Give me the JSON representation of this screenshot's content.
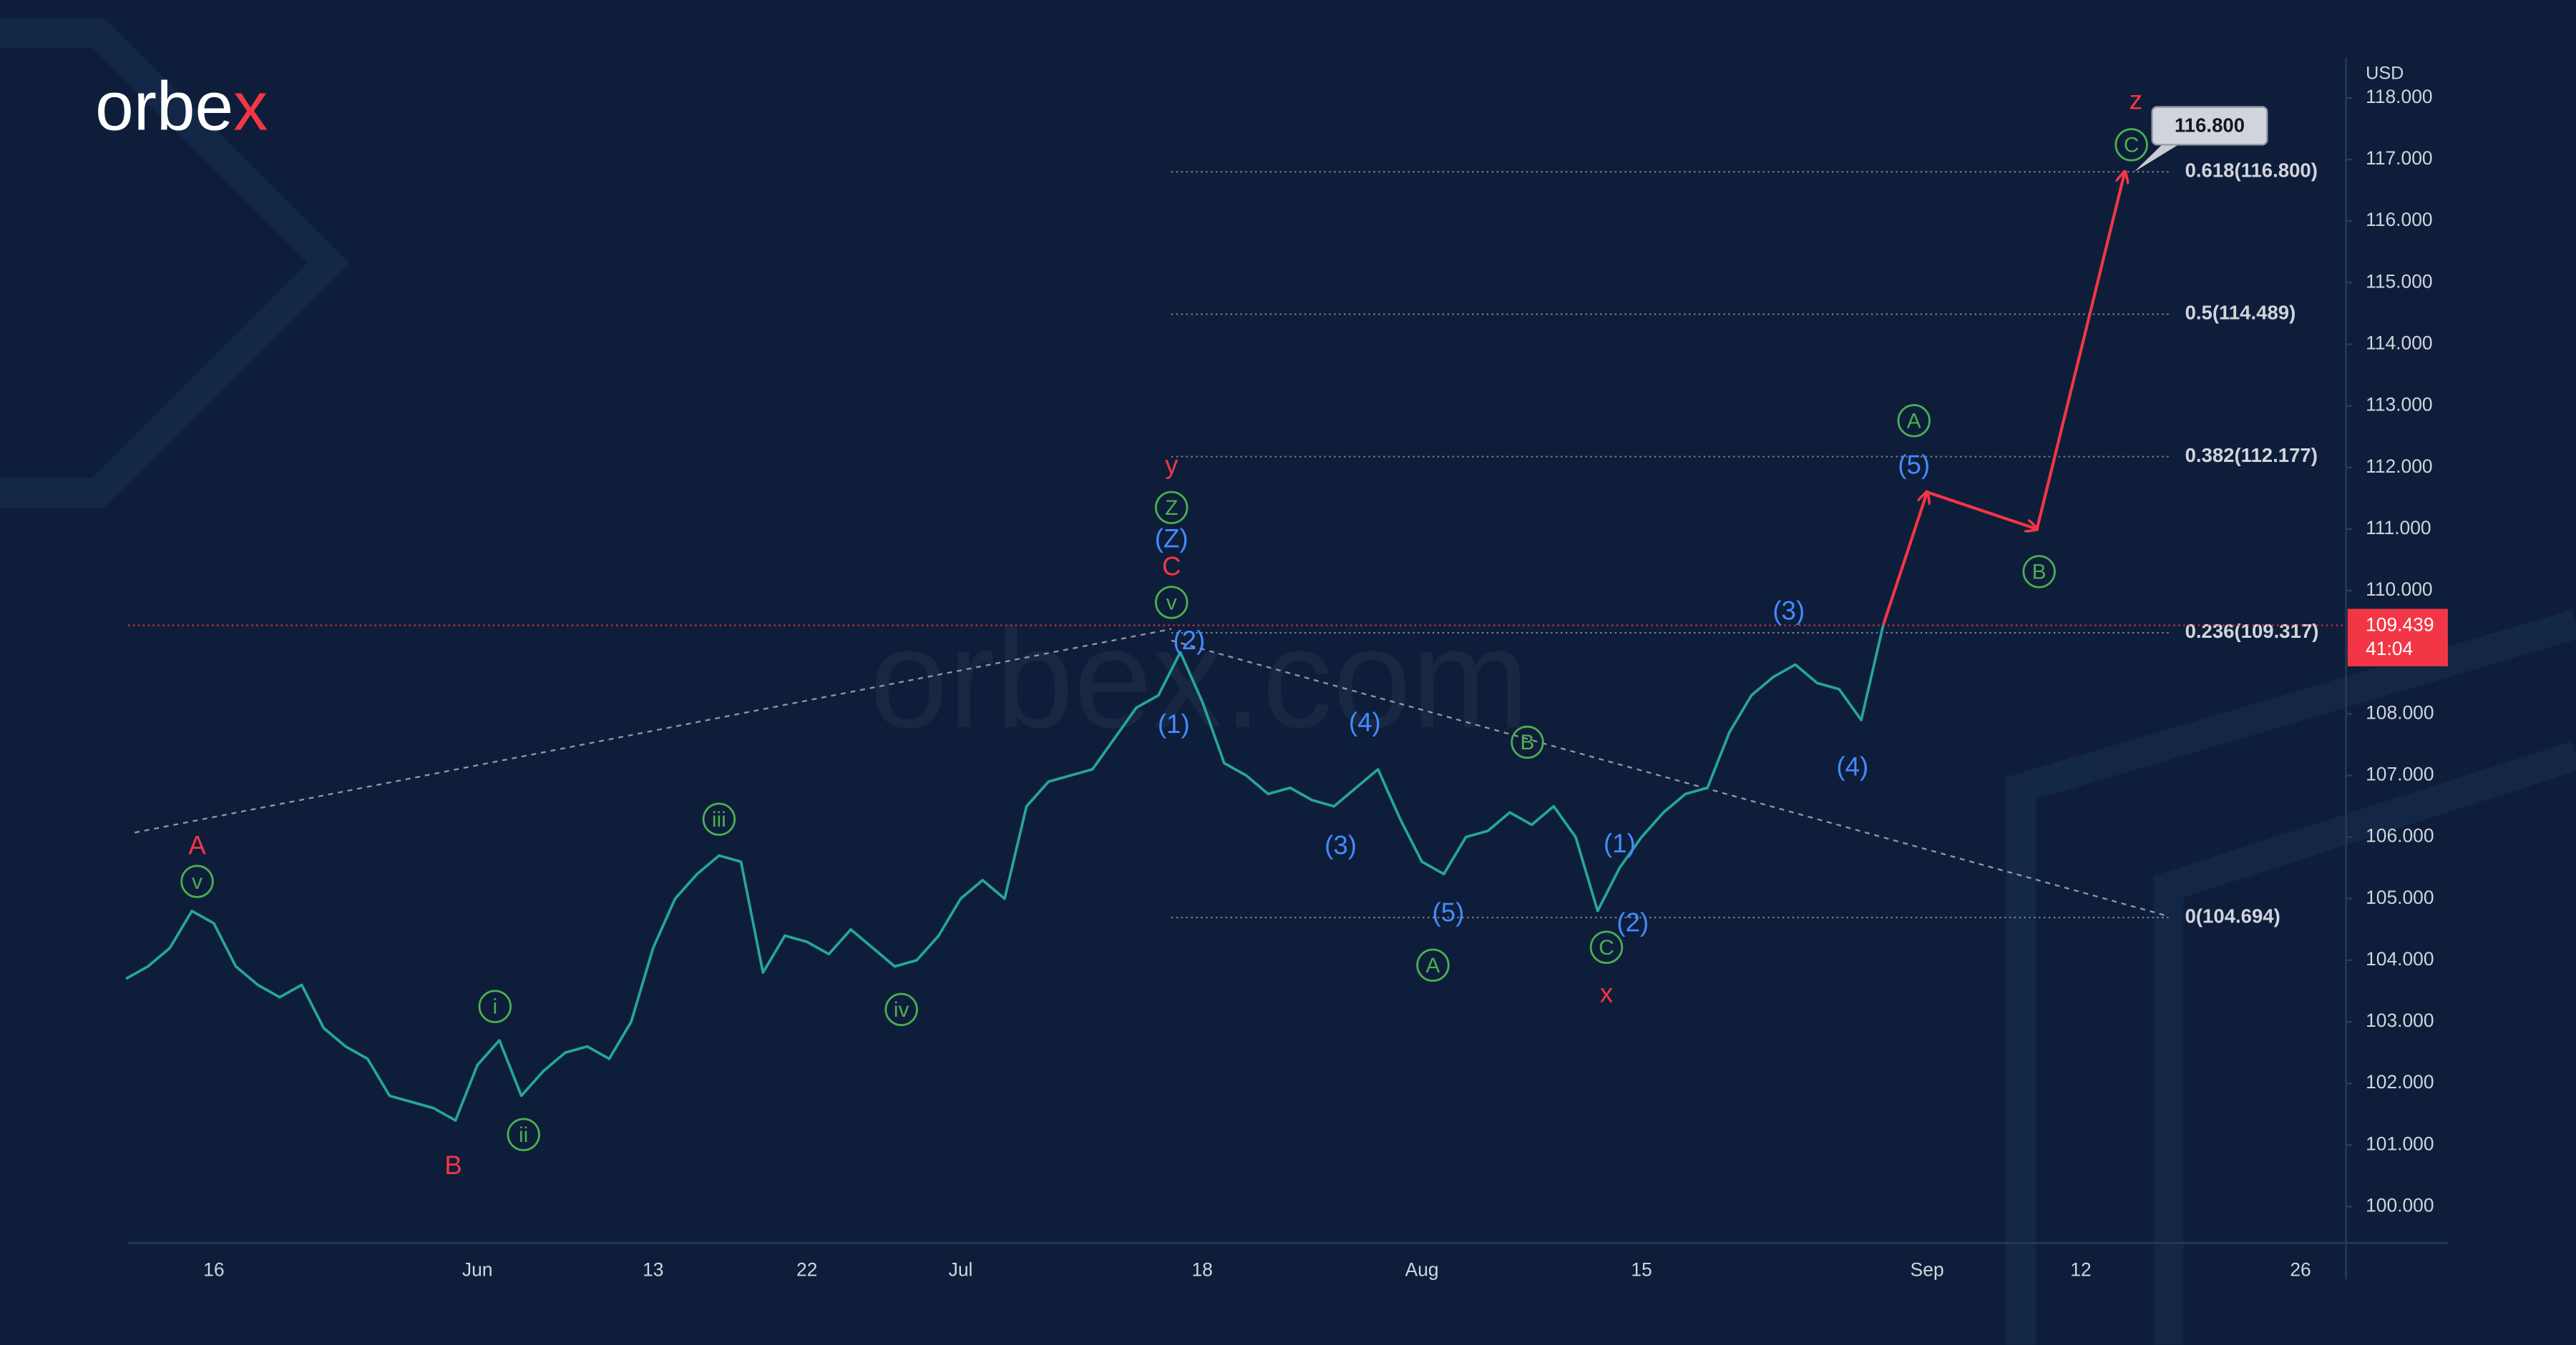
{
  "brand": {
    "name_main": "orbe",
    "name_accent": "x"
  },
  "watermark": "orbex.com",
  "chart_data": {
    "type": "line",
    "currency": "USD",
    "categories": [
      null,
      null,
      null,
      null,
      "16",
      null,
      null,
      null,
      null,
      null,
      null,
      null,
      null,
      null,
      null,
      null,
      "Jun",
      null,
      null,
      null,
      null,
      null,
      null,
      null,
      "13",
      null,
      null,
      null,
      null,
      null,
      null,
      "22",
      null,
      null,
      null,
      null,
      null,
      null,
      "Jul",
      null,
      null,
      null,
      null,
      null,
      null,
      null,
      null,
      null,
      null,
      "18",
      null,
      null,
      null,
      null,
      null,
      null,
      null,
      null,
      null,
      "Aug",
      null,
      null,
      null,
      null,
      null,
      null,
      null,
      null,
      null,
      "15",
      null,
      null,
      null,
      null,
      null,
      null,
      null,
      null,
      null,
      null,
      null,
      null,
      "Sep",
      null,
      null,
      null,
      null,
      null,
      null,
      "12",
      null,
      null,
      null,
      null,
      null,
      null,
      null,
      null,
      null,
      "26",
      null,
      null
    ],
    "series": [
      {
        "color": "#26a69a",
        "values": [
          103.7,
          103.9,
          104.2,
          104.8,
          104.6,
          103.9,
          103.6,
          103.4,
          103.6,
          102.9,
          102.6,
          102.4,
          101.8,
          101.7,
          101.6,
          101.4,
          102.3,
          102.7,
          101.8,
          102.2,
          102.5,
          102.6,
          102.4,
          103.0,
          104.2,
          105.0,
          105.4,
          105.7,
          105.6,
          103.8,
          104.4,
          104.3,
          104.1,
          104.5,
          104.2,
          103.9,
          104.0,
          104.4,
          105.0,
          105.3,
          105.0,
          106.5,
          106.9,
          107.0,
          107.1,
          107.6,
          108.1,
          108.3,
          109.0,
          108.2,
          107.2,
          107.0,
          106.7,
          106.8,
          106.6,
          106.5,
          106.8,
          107.1,
          106.3,
          105.6,
          105.4,
          106.0,
          106.1,
          106.4,
          106.2,
          106.5,
          106.0,
          104.8,
          105.5,
          106.0,
          106.4,
          106.7,
          106.8,
          107.7,
          108.3,
          108.6,
          108.8,
          108.5,
          108.4,
          107.9,
          109.439,
          null,
          null,
          null,
          null,
          null,
          null,
          null,
          null,
          null,
          null,
          null,
          null,
          null,
          null,
          null,
          null,
          null,
          null,
          null,
          null,
          null
        ]
      },
      {
        "color": "#f23645",
        "style": "arrow",
        "values": [
          null,
          null,
          null,
          null,
          null,
          null,
          null,
          null,
          null,
          null,
          null,
          null,
          null,
          null,
          null,
          null,
          null,
          null,
          null,
          null,
          null,
          null,
          null,
          null,
          null,
          null,
          null,
          null,
          null,
          null,
          null,
          null,
          null,
          null,
          null,
          null,
          null,
          null,
          null,
          null,
          null,
          null,
          null,
          null,
          null,
          null,
          null,
          null,
          null,
          null,
          null,
          null,
          null,
          null,
          null,
          null,
          null,
          null,
          null,
          null,
          null,
          null,
          null,
          null,
          null,
          null,
          null,
          null,
          null,
          null,
          null,
          null,
          null,
          null,
          null,
          null,
          null,
          null,
          null,
          null,
          109.439,
          null,
          111.6,
          null,
          null,
          null,
          null,
          111.0,
          null,
          null,
          null,
          116.8,
          null,
          null,
          null,
          null,
          null,
          null,
          null,
          null,
          null,
          null
        ]
      }
    ],
    "ylim": [
      99.41,
      118.52
    ],
    "yticks": [
      {
        "value": 100,
        "label": "100.000"
      },
      {
        "value": 101,
        "label": "101.000"
      },
      {
        "value": 102,
        "label": "102.000"
      },
      {
        "value": 103,
        "label": "103.000"
      },
      {
        "value": 104,
        "label": "104.000"
      },
      {
        "value": 105,
        "label": "105.000"
      },
      {
        "value": 106,
        "label": "106.000"
      },
      {
        "value": 107,
        "label": "107.000"
      },
      {
        "value": 108,
        "label": "108.000"
      },
      {
        "value": 109,
        "label": "109.000"
      },
      {
        "value": 110,
        "label": "110.000"
      },
      {
        "value": 111,
        "label": "111.000"
      },
      {
        "value": 112,
        "label": "112.000"
      },
      {
        "value": 113,
        "label": "113.000"
      },
      {
        "value": 114,
        "label": "114.000"
      },
      {
        "value": 115,
        "label": "115.000"
      },
      {
        "value": 116,
        "label": "116.000"
      },
      {
        "value": 117,
        "label": "117.000"
      },
      {
        "value": 118,
        "label": "118.000"
      }
    ],
    "fib_levels": [
      {
        "label": "0.618(116.800)",
        "value": 116.8
      },
      {
        "label": "0.5(114.489)",
        "value": 114.489
      },
      {
        "label": "0.382(112.177)",
        "value": 112.177
      },
      {
        "label": "0.236(109.317)",
        "value": 109.317
      },
      {
        "label": "0(104.694)",
        "value": 104.694
      }
    ],
    "callout": {
      "value": 116.8,
      "label": "116.800"
    },
    "price_tag": {
      "value": 109.439,
      "label": "109.439",
      "countdown": "41:04",
      "color": "#f23645"
    },
    "annotations": [
      {
        "text": "A",
        "x": 3.24,
        "y": 105.86,
        "color": "#f23645",
        "circled": false
      },
      {
        "text": "v",
        "x": 3.24,
        "y": 105.28,
        "color": "#4caf50",
        "circled": true
      },
      {
        "text": "B",
        "x": 14.9,
        "y": 100.67,
        "color": "#f23645",
        "circled": false
      },
      {
        "text": "i",
        "x": 16.8,
        "y": 103.25,
        "color": "#4caf50",
        "circled": true
      },
      {
        "text": "ii",
        "x": 18.1,
        "y": 101.17,
        "color": "#4caf50",
        "circled": true
      },
      {
        "text": "iii",
        "x": 27.0,
        "y": 106.29,
        "color": "#4caf50",
        "circled": true
      },
      {
        "text": "iv",
        "x": 35.3,
        "y": 103.2,
        "color": "#4caf50",
        "circled": true
      },
      {
        "text": "v",
        "x": 47.6,
        "y": 109.81,
        "color": "#4caf50",
        "circled": true
      },
      {
        "text": "y",
        "x": 47.6,
        "y": 112.04,
        "color": "#f23645",
        "circled": false
      },
      {
        "text": "Z",
        "x": 47.6,
        "y": 111.35,
        "color": "#4caf50",
        "circled": true
      },
      {
        "text": "(Z)",
        "x": 47.6,
        "y": 110.84,
        "color": "#448aff",
        "circled": false
      },
      {
        "text": "C",
        "x": 47.6,
        "y": 110.39,
        "color": "#f23645",
        "circled": false
      },
      {
        "text": "(2)",
        "x": 48.4,
        "y": 109.19,
        "color": "#448aff",
        "circled": false
      },
      {
        "text": "(1)",
        "x": 47.7,
        "y": 107.83,
        "color": "#448aff",
        "circled": false
      },
      {
        "text": "(4)",
        "x": 56.4,
        "y": 107.86,
        "color": "#448aff",
        "circled": false
      },
      {
        "text": "(3)",
        "x": 55.3,
        "y": 105.86,
        "color": "#448aff",
        "circled": false
      },
      {
        "text": "(5)",
        "x": 60.2,
        "y": 104.77,
        "color": "#448aff",
        "circled": false
      },
      {
        "text": "A",
        "x": 59.5,
        "y": 103.92,
        "color": "#4caf50",
        "circled": true
      },
      {
        "text": "B",
        "x": 63.8,
        "y": 107.54,
        "color": "#4caf50",
        "circled": true
      },
      {
        "text": "C",
        "x": 67.4,
        "y": 104.21,
        "color": "#4caf50",
        "circled": true
      },
      {
        "text": "x",
        "x": 67.4,
        "y": 103.46,
        "color": "#f23645",
        "circled": false
      },
      {
        "text": "(1)",
        "x": 68.0,
        "y": 105.89,
        "color": "#448aff",
        "circled": false
      },
      {
        "text": "(2)",
        "x": 68.6,
        "y": 104.61,
        "color": "#448aff",
        "circled": false
      },
      {
        "text": "(3)",
        "x": 75.7,
        "y": 109.67,
        "color": "#448aff",
        "circled": false
      },
      {
        "text": "(4)",
        "x": 78.6,
        "y": 107.14,
        "color": "#448aff",
        "circled": false
      },
      {
        "text": "(5)",
        "x": 81.4,
        "y": 112.04,
        "color": "#448aff",
        "circled": false
      },
      {
        "text": "A",
        "x": 81.4,
        "y": 112.76,
        "color": "#4caf50",
        "circled": true
      },
      {
        "text": "B",
        "x": 87.1,
        "y": 110.31,
        "color": "#4caf50",
        "circled": true
      },
      {
        "text": "C",
        "x": 91.3,
        "y": 117.24,
        "color": "#4caf50",
        "circled": true
      },
      {
        "text": "z",
        "x": 91.5,
        "y": 117.96,
        "color": "#f23645",
        "circled": false
      }
    ]
  }
}
